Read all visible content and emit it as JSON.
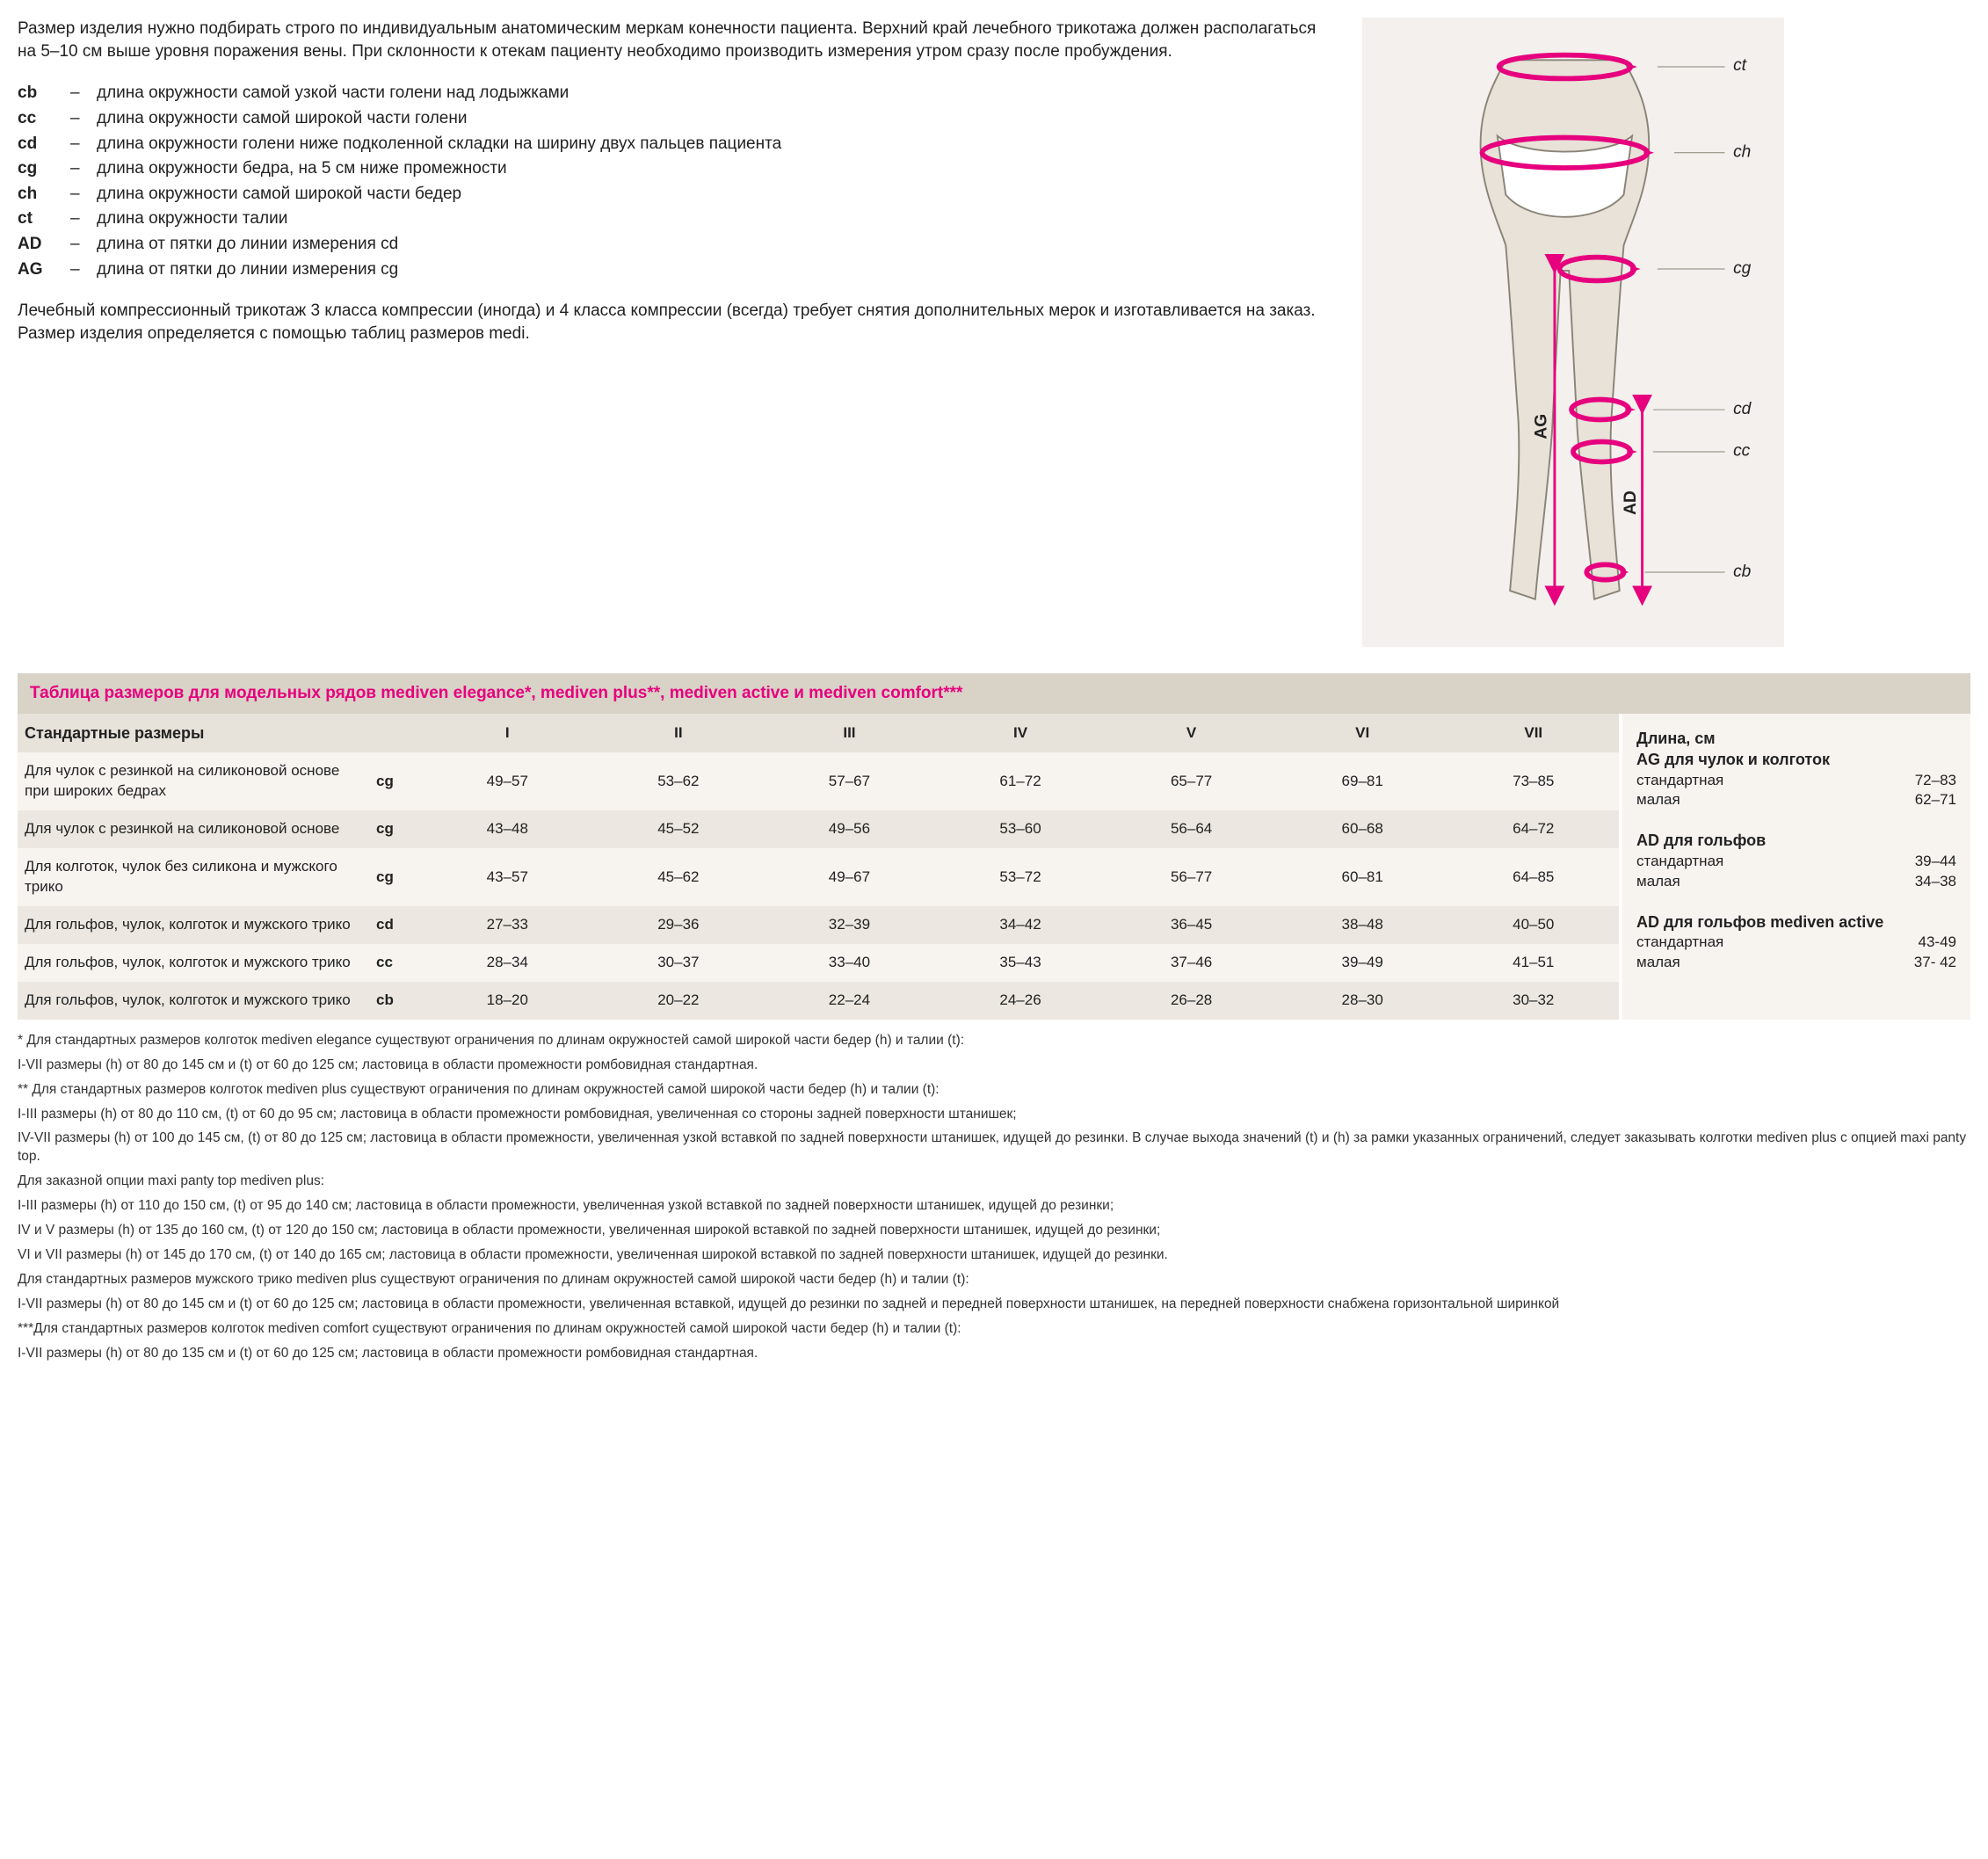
{
  "intro": "Размер изделия нужно подбирать строго по индивидуальным анатомическим меркам конечности пациента. Верхний край лечебного трикотажа должен располагаться на 5–10 см выше уровня поражения вены. При склонности к отекам пациенту необходимо производить измерения утром сразу после пробуждения.",
  "definitions": [
    {
      "label": "cb",
      "text": "длина окружности самой узкой части голени над лодыжками"
    },
    {
      "label": "cc",
      "text": "длина окружности самой широкой части голени"
    },
    {
      "label": "cd",
      "text": "длина окружности голени ниже подколенной складки на ширину двух пальцев пациента"
    },
    {
      "label": "cg",
      "text": "длина окружности бедра, на 5 см ниже промежности"
    },
    {
      "label": "ch",
      "text": "длина окружности самой широкой части бедер"
    },
    {
      "label": "ct",
      "text": "длина окружности талии"
    },
    {
      "label": "AD",
      "text": "длина от пятки до линии измерения cd"
    },
    {
      "label": "AG",
      "text": "длина от пятки до линии измерения cg"
    }
  ],
  "outro": "Лечебный компрессионный трикотаж 3 класса компрессии (иногда) и 4 класса компрессии (всегда) требует снятия дополнительных мерок и изготавливается на заказ. Размер изделия определяется с помощью таблиц размеров medi.",
  "diagram": {
    "labels": [
      "ct",
      "ch",
      "cg",
      "cd",
      "cc",
      "cb"
    ],
    "vertical": [
      "AG",
      "AD"
    ],
    "arrow_color": "#e6007e",
    "body_fill": "#e8e2d8",
    "body_stroke": "#8a8378",
    "bg": "#f3f0ed"
  },
  "table": {
    "title": "Таблица размеров для модельных рядов mediven elegance*, mediven plus**, mediven active и mediven comfort***",
    "header_left": "Стандартные размеры",
    "sizes": [
      "I",
      "II",
      "III",
      "IV",
      "V",
      "VI",
      "VII"
    ],
    "header_right": "Длина, см",
    "rows": [
      {
        "desc": "Для чулок с резинкой на силиконовой основе при широких бедрах",
        "meas": "cg",
        "vals": [
          "49–57",
          "53–62",
          "57–67",
          "61–72",
          "65–77",
          "69–81",
          "73–85"
        ]
      },
      {
        "desc": "Для чулок с резинкой на силиконовой основе",
        "meas": "cg",
        "vals": [
          "43–48",
          "45–52",
          "49–56",
          "53–60",
          "56–64",
          "60–68",
          "64–72"
        ]
      },
      {
        "desc": "Для колготок, чулок без силикона и мужского трико",
        "meas": "cg",
        "vals": [
          "43–57",
          "45–62",
          "49–67",
          "53–72",
          "56–77",
          "60–81",
          "64–85"
        ]
      },
      {
        "desc": "Для гольфов, чулок, колготок и мужского трико",
        "meas": "cd",
        "vals": [
          "27–33",
          "29–36",
          "32–39",
          "34–42",
          "36–45",
          "38–48",
          "40–50"
        ]
      },
      {
        "desc": "Для гольфов, чулок, колготок и мужского трико",
        "meas": "cc",
        "vals": [
          "28–34",
          "30–37",
          "33–40",
          "35–43",
          "37–46",
          "39–49",
          "41–51"
        ]
      },
      {
        "desc": "Для гольфов, чулок, колготок и мужского трико",
        "meas": "cb",
        "vals": [
          "18–20",
          "20–22",
          "22–24",
          "24–26",
          "26–28",
          "28–30",
          "30–32"
        ]
      }
    ],
    "lengths": [
      {
        "title": "AG для чулок и колготок",
        "lines": [
          {
            "k": "стандартная",
            "v": "72–83"
          },
          {
            "k": "малая",
            "v": "62–71"
          }
        ]
      },
      {
        "title": "AD для гольфов",
        "lines": [
          {
            "k": "стандартная",
            "v": "39–44"
          },
          {
            "k": "малая",
            "v": "34–38"
          }
        ]
      },
      {
        "title": "AD для гольфов mediven active",
        "lines": [
          {
            "k": "стандартная",
            "v": "43-49"
          },
          {
            "k": "малая",
            "v": "37- 42"
          }
        ]
      }
    ]
  },
  "notes": [
    "* Для стандартных размеров колготок mediven elegance существуют ограничения по длинам окружностей самой широкой части бедер (h) и талии (t):",
    "I-VII размеры (h) от 80 до 145 см и (t) от 60 до 125 см; ластовица в области промежности ромбовидная стандартная.",
    "** Для стандартных размеров колготок mediven plus существуют ограничения по длинам окружностей самой широкой части бедер (h) и талии (t):",
    "I-III размеры (h) от 80 до 110 см, (t) от 60 до 95 см; ластовица в области промежности ромбовидная, увеличенная со стороны задней поверхности штанишек;",
    "IV-VII размеры (h) от 100 до 145 см, (t) от 80 до 125 см; ластовица в области промежности, увеличенная узкой вставкой по задней поверхности штанишек, идущей до резинки. В случае выхода значений (t) и (h) за рамки указанных ограничений, следует заказывать колготки mediven plus с опцией maxi panty top.",
    "Для заказной опции maxi panty top mediven plus:",
    "I-III размеры (h) от 110 до 150 см, (t) от 95 до 140 см; ластовица в области промежности, увеличенная узкой вставкой по задней поверхности штанишек, идущей до резинки;",
    "IV и V размеры (h) от 135 до 160 см, (t) от 120 до 150 см; ластовица в области промежности, увеличенная широкой вставкой по задней поверхности штанишек, идущей до резинки;",
    "VI и VII размеры (h) от 145 до 170 см, (t) от 140 до 165 см; ластовица в области промежности, увеличенная широкой вставкой по задней поверхности штанишек, идущей до резинки.",
    "Для стандартных размеров мужского трико mediven plus существуют ограничения по длинам окружностей самой широкой части бедер (h) и талии (t):",
    "I-VII размеры (h) от 80 до 145 см и (t) от 60 до 125 см; ластовица в области промежности, увеличенная вставкой, идущей до резинки по задней и передней поверхности штанишек, на передней поверхности снабжена горизонтальной ширинкой",
    "***Для стандартных размеров колготок mediven comfort существуют ограничения по длинам окружностей самой широкой части бедер (h) и талии (t):",
    "I-VII размеры (h) от 80 до 135 см и (t) от 60 до 125 см; ластовица в области промежности ромбовидная стандартная."
  ]
}
